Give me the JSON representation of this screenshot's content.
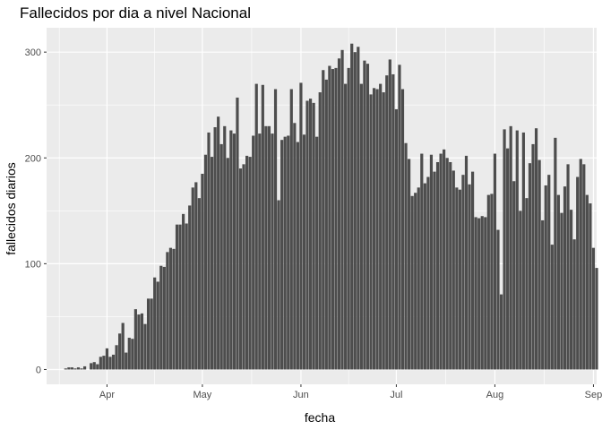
{
  "chart_data": {
    "type": "bar",
    "title": "Fallecidos por dia a nivel Nacional",
    "xlabel": "fecha",
    "ylabel": "fallecidos diarios",
    "x_start": "2020-03-19",
    "xlim": [
      "2020-03-13",
      "2020-09-02"
    ],
    "ylim": [
      -14,
      323
    ],
    "y_ticks": [
      0,
      100,
      200,
      300
    ],
    "x_ticks": [
      {
        "date": "2020-04-01",
        "label": "Apr"
      },
      {
        "date": "2020-05-01",
        "label": "May"
      },
      {
        "date": "2020-06-01",
        "label": "Jun"
      },
      {
        "date": "2020-07-01",
        "label": "Jul"
      },
      {
        "date": "2020-08-01",
        "label": "Aug"
      },
      {
        "date": "2020-09-01",
        "label": "Sep"
      }
    ],
    "grid": true,
    "panel_color": "#ebebeb",
    "bar_color": "#4d4d4d",
    "values": [
      1,
      2,
      2,
      1,
      2,
      1,
      3,
      0,
      6,
      7,
      5,
      12,
      13,
      20,
      12,
      14,
      23,
      34,
      44,
      16,
      30,
      29,
      57,
      52,
      53,
      43,
      67,
      67,
      87,
      83,
      98,
      97,
      111,
      115,
      114,
      137,
      137,
      147,
      138,
      155,
      172,
      177,
      162,
      185,
      203,
      224,
      201,
      229,
      239,
      213,
      230,
      200,
      226,
      223,
      257,
      190,
      194,
      202,
      201,
      221,
      270,
      223,
      269,
      230,
      230,
      223,
      265,
      160,
      217,
      220,
      221,
      265,
      233,
      215,
      271,
      222,
      254,
      256,
      252,
      220,
      262,
      283,
      274,
      287,
      284,
      285,
      294,
      302,
      270,
      285,
      308,
      300,
      305,
      270,
      292,
      289,
      260,
      266,
      265,
      270,
      262,
      278,
      293,
      279,
      246,
      288,
      265,
      214,
      199,
      164,
      167,
      172,
      204,
      176,
      182,
      203,
      187,
      196,
      204,
      208,
      200,
      196,
      188,
      172,
      170,
      184,
      202,
      175,
      187,
      144,
      143,
      145,
      144,
      165,
      166,
      204,
      132,
      71,
      227,
      209,
      230,
      178,
      226,
      150,
      224,
      162,
      195,
      213,
      228,
      198,
      141,
      174,
      184,
      118,
      219,
      165,
      148,
      173,
      194,
      151,
      123,
      182,
      199,
      194,
      165,
      157,
      115,
      96
    ]
  }
}
